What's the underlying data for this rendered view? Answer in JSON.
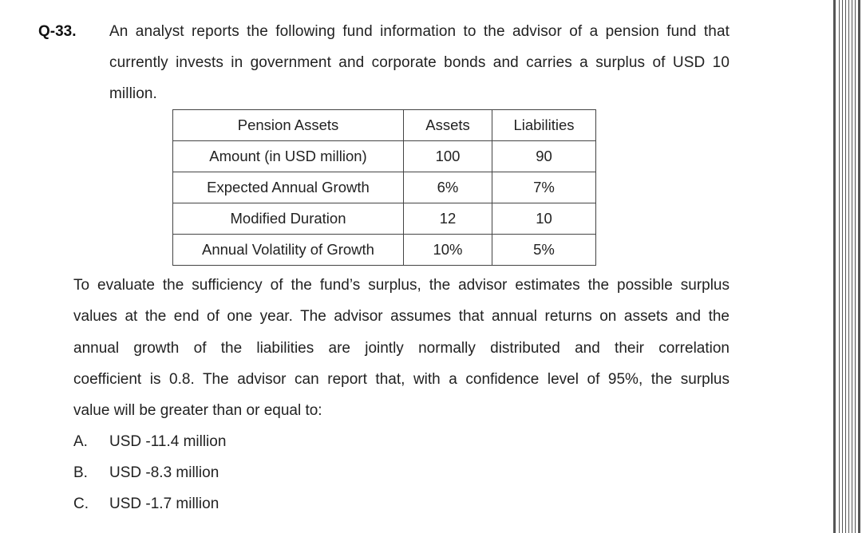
{
  "question": {
    "number": "Q-33.",
    "intro_lines": [
      "An analyst reports the following fund information to the advisor of a pension fund that",
      "currently invests in government and corporate bonds and carries a surplus of USD 10",
      "million."
    ]
  },
  "table": {
    "headers": [
      "Pension Assets",
      "Assets",
      "Liabilities"
    ],
    "rows": [
      [
        "Amount (in USD million)",
        "100",
        "90"
      ],
      [
        "Expected Annual Growth",
        "6%",
        "7%"
      ],
      [
        "Modified Duration",
        "12",
        "10"
      ],
      [
        "Annual Volatility of Growth",
        "10%",
        "5%"
      ]
    ]
  },
  "body_lines": [
    "To evaluate the sufficiency of the fund’s surplus, the advisor estimates the possible surplus",
    "values at the end of one year. The advisor assumes that annual returns on assets and the",
    "annual growth of the liabilities are jointly normally distributed and their correlation",
    "coefficient is 0.8. The advisor can report that, with a confidence level of 95%, the surplus",
    "value will be greater than or equal to:"
  ],
  "options": [
    {
      "letter": "A.",
      "text": "USD -11.4 million"
    },
    {
      "letter": "B.",
      "text": "USD -8.3 million"
    },
    {
      "letter": "C.",
      "text": "USD -1.7 million"
    }
  ]
}
